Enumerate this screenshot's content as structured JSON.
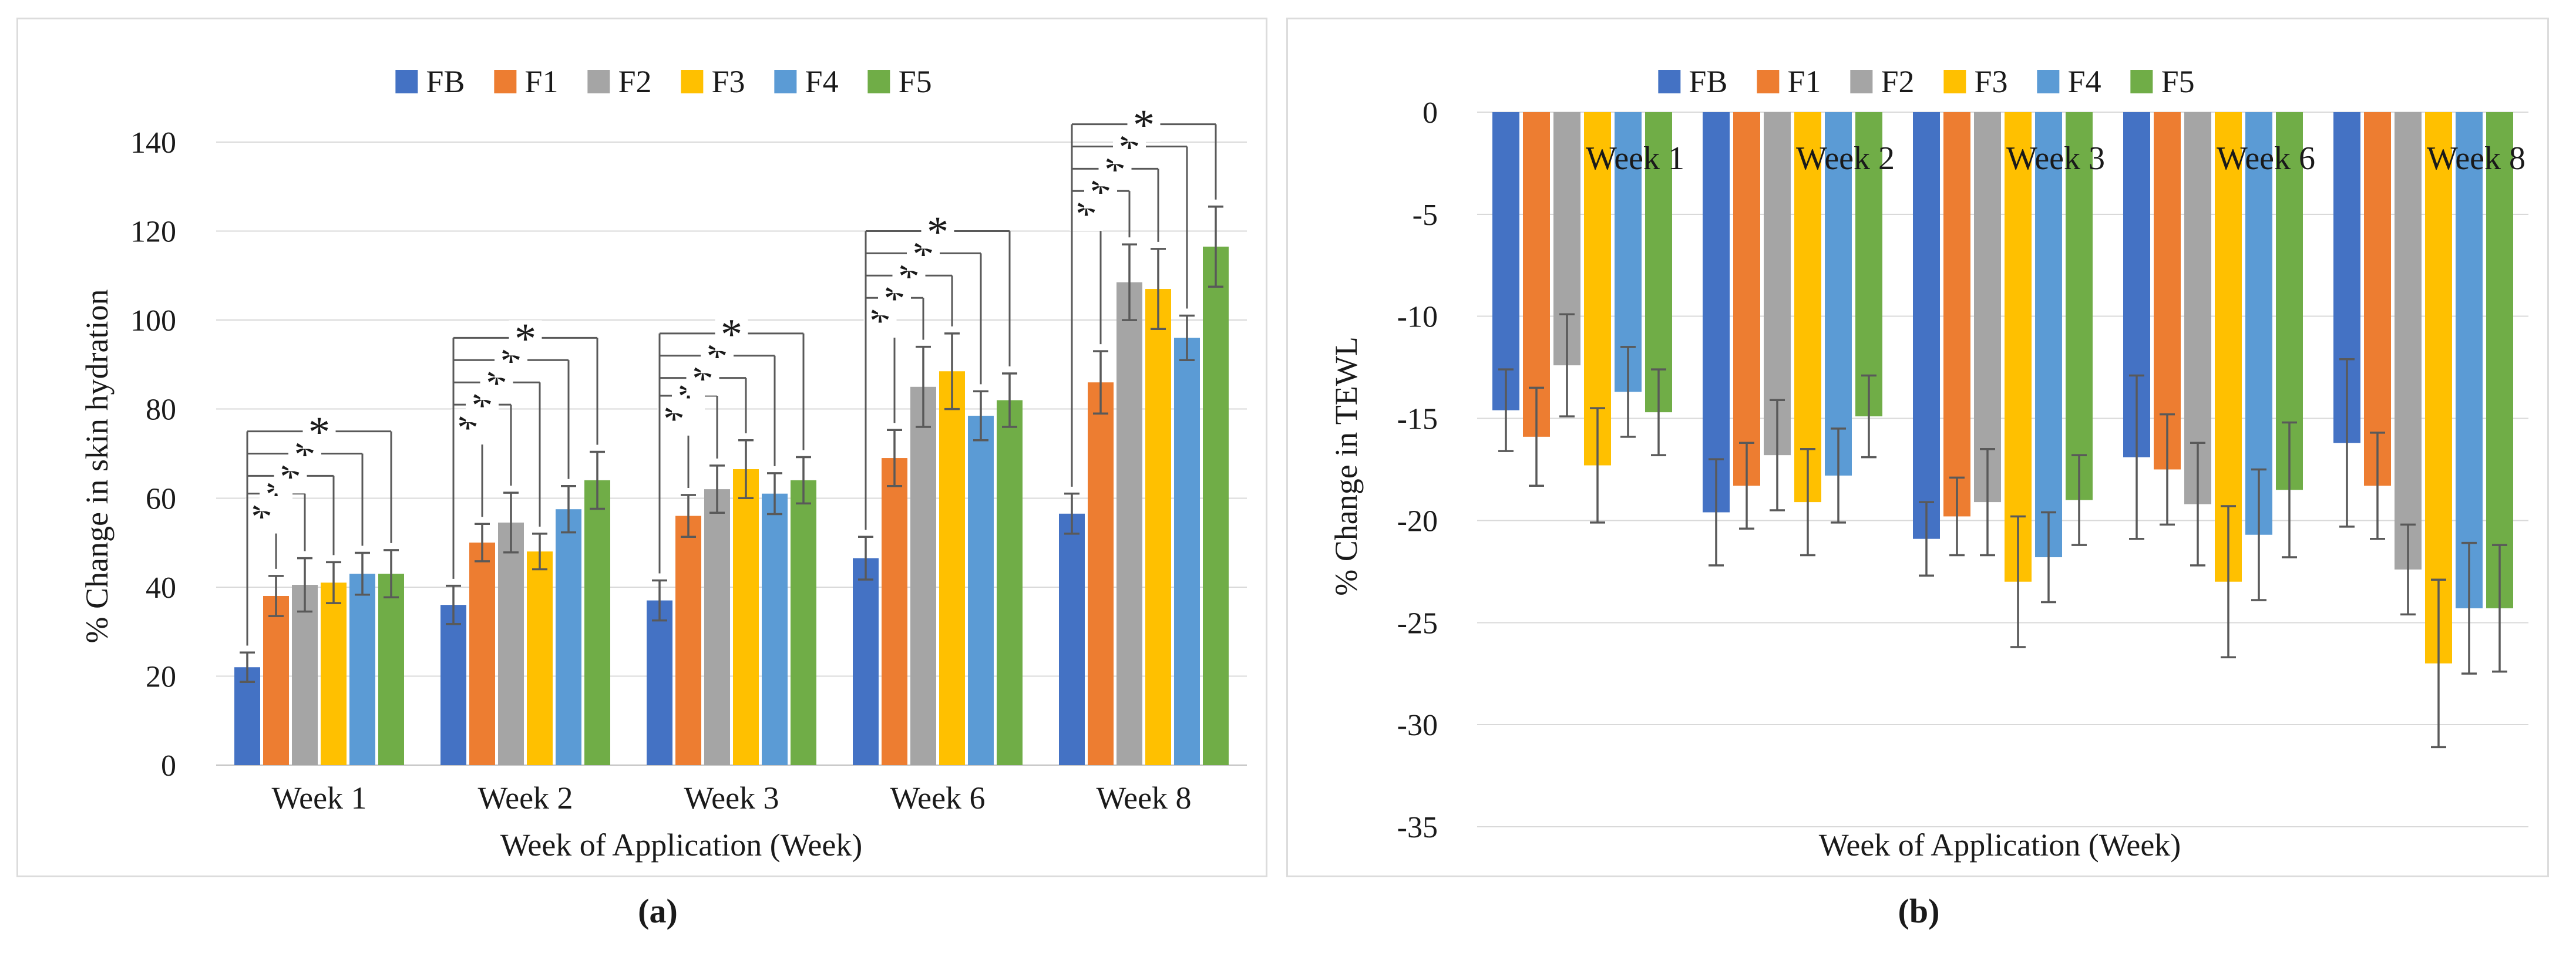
{
  "figure": {
    "caption_a": "(a)",
    "caption_b": "(b)"
  },
  "series": [
    {
      "name": "FB",
      "color": "#4472C4"
    },
    {
      "name": "F1",
      "color": "#ED7D31"
    },
    {
      "name": "F2",
      "color": "#A5A5A5"
    },
    {
      "name": "F3",
      "color": "#FFC000"
    },
    {
      "name": "F4",
      "color": "#5B9BD5"
    },
    {
      "name": "F5",
      "color": "#70AD47"
    }
  ],
  "style_colors": {
    "gridline": "#D9D9D9",
    "baseline": "#BFBFBF",
    "error_bar": "#595959",
    "bracket": "#595959",
    "text": "#1a1a1a"
  },
  "chart_data": [
    {
      "id": "hydration",
      "type": "bar",
      "title": "",
      "xlabel": "Week of Application  (Week)",
      "ylabel": "% Change in skin hydration",
      "categories": [
        "Week 1",
        "Week 2",
        "Week 3",
        "Week 6",
        "Week 8"
      ],
      "ylim": [
        0,
        140
      ],
      "yticks": [
        0,
        20,
        40,
        60,
        80,
        100,
        120,
        140
      ],
      "grid": true,
      "legend_position": "top",
      "legend_entries": [
        "FB",
        "F1",
        "F2",
        "F3",
        "F4",
        "F5"
      ],
      "series": [
        {
          "name": "FB",
          "color": "#4472C4",
          "values": [
            22,
            36,
            37,
            46.5,
            56.5
          ],
          "errors": [
            3.3,
            4.3,
            4.5,
            4.8,
            4.5
          ]
        },
        {
          "name": "F1",
          "color": "#ED7D31",
          "values": [
            38,
            50,
            56,
            69,
            86
          ],
          "errors": [
            4.5,
            4.2,
            4.7,
            6.3,
            7
          ]
        },
        {
          "name": "F2",
          "color": "#A5A5A5",
          "values": [
            40.5,
            54.5,
            62,
            85,
            108.5
          ],
          "errors": [
            6,
            6.7,
            5.3,
            9,
            8.5
          ]
        },
        {
          "name": "F3",
          "color": "#FFC000",
          "values": [
            41,
            48,
            66.5,
            88.5,
            107
          ],
          "errors": [
            4.6,
            4,
            6.5,
            8.5,
            9
          ]
        },
        {
          "name": "F4",
          "color": "#5B9BD5",
          "values": [
            43,
            57.5,
            61,
            78.5,
            96
          ],
          "errors": [
            4.7,
            5.2,
            4.6,
            5.5,
            5
          ]
        },
        {
          "name": "F5",
          "color": "#70AD47",
          "values": [
            43,
            64,
            64,
            82,
            116.5
          ],
          "errors": [
            5.3,
            6.4,
            5.2,
            6,
            9
          ]
        }
      ],
      "significance": [
        {
          "category": "Week 1",
          "from": "FB",
          "label": "*",
          "to": [
            "F1",
            "F2",
            "F3",
            "F4",
            "F5"
          ],
          "heights": [
            56,
            61,
            65,
            70,
            75
          ]
        },
        {
          "category": "Week 2",
          "from": "FB",
          "label": "*",
          "to": [
            "F1",
            "F2",
            "F3",
            "F4",
            "F5"
          ],
          "heights": [
            76,
            81,
            86,
            91,
            96
          ]
        },
        {
          "category": "Week 3",
          "from": "FB",
          "label": "*",
          "to": [
            "F1",
            "F2",
            "F3",
            "F4",
            "F5"
          ],
          "heights": [
            78,
            83,
            87,
            92,
            97
          ]
        },
        {
          "category": "Week 6",
          "from": "FB",
          "label": "*",
          "to": [
            "F1",
            "F2",
            "F3",
            "F4",
            "F5"
          ],
          "heights": [
            100,
            105,
            110,
            115,
            120
          ]
        },
        {
          "category": "Week 8",
          "from": "FB",
          "label": "*",
          "to": [
            "F1",
            "F2",
            "F3",
            "F4",
            "F5"
          ],
          "heights": [
            124,
            129,
            134,
            139,
            144
          ]
        }
      ]
    },
    {
      "id": "tewl",
      "type": "bar",
      "title": "",
      "xlabel": "Week of Application  (Week)",
      "ylabel": "% Change in TEWL",
      "categories": [
        "Week 1",
        "Week 2",
        "Week 3",
        "Week 6",
        "Week 8"
      ],
      "ylim": [
        -35,
        0
      ],
      "yticks": [
        0,
        -5,
        -10,
        -15,
        -20,
        -25,
        -30,
        -35
      ],
      "grid": true,
      "legend_position": "top",
      "legend_entries": [
        "FB",
        "F1",
        "F2",
        "F3",
        "F4",
        "F5"
      ],
      "group_labels_inside": true,
      "series": [
        {
          "name": "FB",
          "color": "#4472C4",
          "values": [
            -14.6,
            -19.6,
            -20.9,
            -16.9,
            -16.2
          ],
          "errors": [
            2.0,
            2.6,
            1.8,
            4.0,
            4.1
          ]
        },
        {
          "name": "F1",
          "color": "#ED7D31",
          "values": [
            -15.9,
            -18.3,
            -19.8,
            -17.5,
            -18.3
          ],
          "errors": [
            2.4,
            2.1,
            1.9,
            2.7,
            2.6
          ]
        },
        {
          "name": "F2",
          "color": "#A5A5A5",
          "values": [
            -12.4,
            -16.8,
            -19.1,
            -19.2,
            -22.4
          ],
          "errors": [
            2.5,
            2.7,
            2.6,
            3.0,
            2.2
          ]
        },
        {
          "name": "F3",
          "color": "#FFC000",
          "values": [
            -17.3,
            -19.1,
            -23.0,
            -23.0,
            -27.0
          ],
          "errors": [
            2.8,
            2.6,
            3.2,
            3.7,
            4.1
          ]
        },
        {
          "name": "F4",
          "color": "#5B9BD5",
          "values": [
            -13.7,
            -17.8,
            -21.8,
            -20.7,
            -24.3
          ],
          "errors": [
            2.2,
            2.3,
            2.2,
            3.2,
            3.2
          ]
        },
        {
          "name": "F5",
          "color": "#70AD47",
          "values": [
            -14.7,
            -14.9,
            -19.0,
            -18.5,
            -24.3
          ],
          "errors": [
            2.1,
            2.0,
            2.2,
            3.3,
            3.1
          ]
        }
      ]
    }
  ]
}
